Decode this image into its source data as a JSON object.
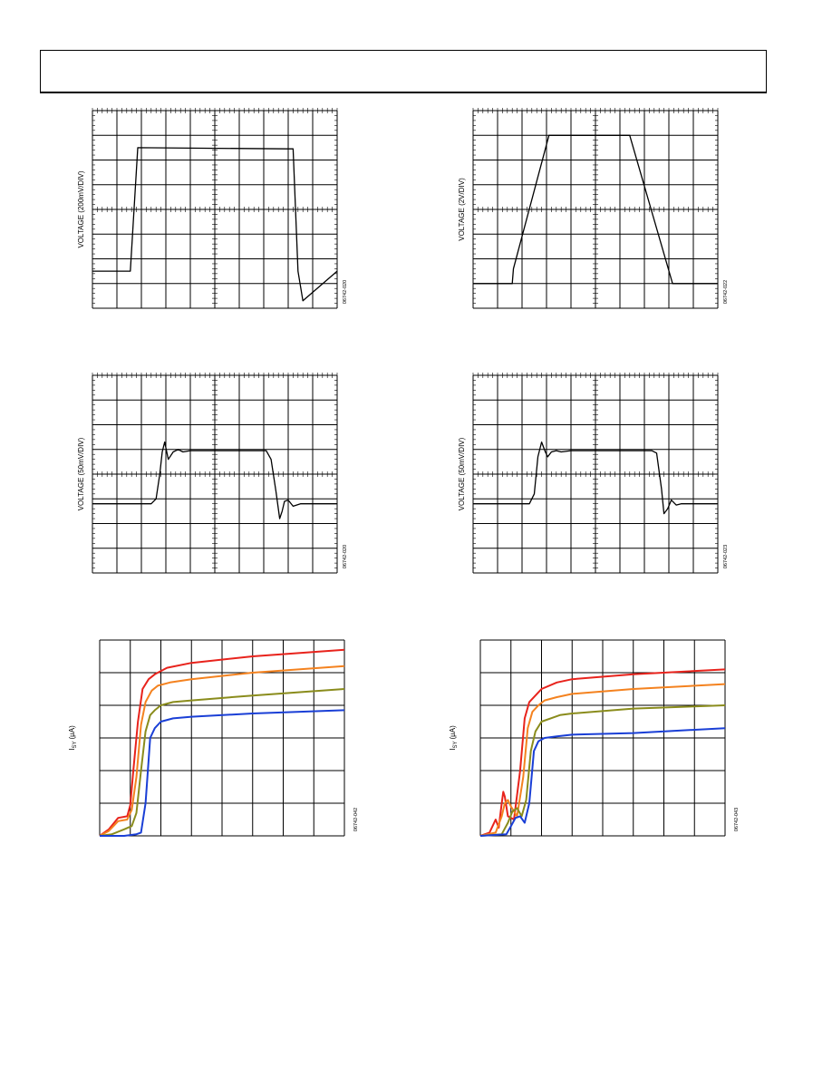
{
  "charts": [
    {
      "ylabel": "VOLTAGE (200mV/DIV)",
      "code": "06742-020",
      "chart_data": {
        "type": "line",
        "series": [
          {
            "name": "",
            "color": "#000000",
            "x": [
              0,
              1.0,
              1.55,
              1.85,
              7.95,
              8.2,
              8.4,
              8.6,
              10
            ],
            "y": [
              1.5,
              1.5,
              1.5,
              6.5,
              6.45,
              6.45,
              1.5,
              0.3,
              1.5
            ]
          }
        ],
        "xlim": [
          0,
          10
        ],
        "ylim": [
          0,
          8
        ],
        "grid": true
      }
    },
    {
      "ylabel": "VOLTAGE (2V/DIV)",
      "code": "06742-022",
      "chart_data": {
        "type": "line",
        "series": [
          {
            "name": "",
            "color": "#000000",
            "x": [
              0,
              1.6,
              1.6,
              1.65,
              3.1,
              6.4,
              8.15,
              10
            ],
            "y": [
              1.0,
              1.0,
              1.0,
              1.6,
              7.0,
              7.0,
              1.0,
              1.0
            ]
          }
        ],
        "xlim": [
          0,
          10
        ],
        "ylim": [
          0,
          8
        ],
        "grid": true
      }
    },
    {
      "ylabel": "VOLTAGE (50mV/DIV)",
      "code": "06742-020",
      "chart_data": {
        "type": "line",
        "series": [
          {
            "name": "",
            "color": "#000000",
            "x": [
              0,
              2.4,
              2.6,
              2.75,
              2.85,
              2.95,
              3.1,
              3.3,
              3.5,
              3.7,
              4,
              6.5,
              7.1,
              7.3,
              7.5,
              7.65,
              7.75,
              7.85,
              8.0,
              8.2,
              8.5,
              10
            ],
            "y": [
              2.8,
              2.8,
              3.0,
              4.0,
              4.9,
              5.3,
              4.6,
              4.9,
              5.0,
              4.9,
              4.95,
              4.95,
              4.95,
              4.6,
              3.3,
              2.2,
              2.5,
              2.9,
              2.95,
              2.7,
              2.8,
              2.8
            ]
          }
        ],
        "xlim": [
          0,
          10
        ],
        "ylim": [
          0,
          8
        ],
        "grid": true
      }
    },
    {
      "ylabel": "VOLTAGE (50mV/DIV)",
      "code": "06742-023",
      "chart_data": {
        "type": "line",
        "series": [
          {
            "name": "",
            "color": "#000000",
            "x": [
              0,
              2.3,
              2.5,
              2.65,
              2.8,
              2.95,
              3.05,
              3.2,
              3.4,
              3.6,
              4,
              7.3,
              7.5,
              7.7,
              7.8,
              7.95,
              8.1,
              8.3,
              8.5,
              10
            ],
            "y": [
              2.8,
              2.8,
              3.2,
              4.7,
              5.3,
              4.9,
              4.7,
              4.9,
              4.95,
              4.9,
              4.95,
              4.95,
              4.85,
              3.4,
              2.4,
              2.6,
              2.95,
              2.75,
              2.8,
              2.8
            ]
          }
        ],
        "xlim": [
          0,
          10
        ],
        "ylim": [
          0,
          8
        ],
        "grid": true
      }
    },
    {
      "ylabel": "I",
      "ylabel_sub": "SY",
      "ylabel_unit": "(µA)",
      "code": "06742-042",
      "chart_data": {
        "type": "line",
        "xlim": [
          0,
          8
        ],
        "ylim": [
          0,
          6
        ],
        "grid": true,
        "series": [
          {
            "name": "",
            "color": "#e8231c",
            "x": [
              0,
              0.3,
              0.6,
              0.9,
              1.0,
              1.1,
              1.25,
              1.4,
              1.6,
              1.8,
              2.2,
              3,
              5,
              8
            ],
            "y": [
              0,
              0.2,
              0.55,
              0.6,
              0.95,
              2.0,
              3.5,
              4.5,
              4.8,
              4.95,
              5.15,
              5.3,
              5.5,
              5.7
            ]
          },
          {
            "name": "",
            "color": "#f4821f",
            "x": [
              0,
              0.3,
              0.6,
              0.9,
              1.05,
              1.2,
              1.35,
              1.5,
              1.7,
              1.9,
              2.3,
              3,
              5,
              8
            ],
            "y": [
              0,
              0.15,
              0.45,
              0.5,
              0.8,
              1.8,
              3.4,
              4.1,
              4.45,
              4.6,
              4.7,
              4.8,
              5.0,
              5.2
            ]
          },
          {
            "name": "",
            "color": "#8a8c1c",
            "x": [
              0,
              0.4,
              0.8,
              1.05,
              1.2,
              1.35,
              1.5,
              1.65,
              1.8,
              2.0,
              2.4,
              3,
              5,
              8
            ],
            "y": [
              0,
              0.05,
              0.2,
              0.3,
              0.7,
              2.0,
              3.2,
              3.7,
              3.85,
              4.0,
              4.1,
              4.15,
              4.3,
              4.5
            ]
          },
          {
            "name": "",
            "color": "#1a3fd6",
            "x": [
              0,
              0.8,
              1.2,
              1.35,
              1.5,
              1.65,
              1.8,
              2.0,
              2.4,
              3,
              5,
              8
            ],
            "y": [
              0,
              0.0,
              0.05,
              0.1,
              1.0,
              3.0,
              3.3,
              3.5,
              3.6,
              3.65,
              3.75,
              3.85
            ]
          }
        ]
      }
    },
    {
      "ylabel": "I",
      "ylabel_sub": "SY",
      "ylabel_unit": "(µA)",
      "code": "06742-043",
      "chart_data": {
        "type": "line",
        "xlim": [
          0,
          8
        ],
        "ylim": [
          0,
          6
        ],
        "grid": true,
        "series": [
          {
            "name": "",
            "color": "#e8231c",
            "x": [
              0,
              0.3,
              0.5,
              0.6,
              0.7,
              0.75,
              0.8,
              0.9,
              1.1,
              1.3,
              1.45,
              1.6,
              1.8,
              2.0,
              2.5,
              3,
              5,
              8
            ],
            "y": [
              0,
              0.1,
              0.5,
              0.25,
              1.0,
              1.35,
              1.2,
              0.6,
              0.5,
              2.0,
              3.6,
              4.1,
              4.3,
              4.5,
              4.7,
              4.8,
              4.95,
              5.1
            ]
          },
          {
            "name": "",
            "color": "#f4821f",
            "x": [
              0,
              0.5,
              0.7,
              0.8,
              0.9,
              1.0,
              1.2,
              1.4,
              1.55,
              1.7,
              1.9,
              2.1,
              2.5,
              3,
              5,
              8
            ],
            "y": [
              0,
              0.1,
              0.6,
              1.0,
              1.1,
              0.9,
              0.6,
              1.8,
              3.3,
              3.8,
              4.0,
              4.15,
              4.25,
              4.35,
              4.5,
              4.65
            ]
          },
          {
            "name": "",
            "color": "#8a8c1c",
            "x": [
              0,
              0.7,
              0.9,
              1.05,
              1.2,
              1.35,
              1.5,
              1.65,
              1.8,
              2.0,
              2.3,
              2.6,
              3,
              5,
              8
            ],
            "y": [
              0,
              0.05,
              0.4,
              0.75,
              0.85,
              0.6,
              1.1,
              2.6,
              3.2,
              3.5,
              3.6,
              3.7,
              3.75,
              3.9,
              4.0
            ]
          },
          {
            "name": "",
            "color": "#1a3fd6",
            "x": [
              0,
              0.85,
              1.0,
              1.15,
              1.3,
              1.45,
              1.6,
              1.75,
              1.9,
              2.1,
              2.5,
              3,
              5,
              8
            ],
            "y": [
              0,
              0.05,
              0.3,
              0.55,
              0.6,
              0.4,
              1.0,
              2.6,
              2.9,
              3.0,
              3.05,
              3.1,
              3.15,
              3.3
            ]
          }
        ]
      }
    }
  ]
}
